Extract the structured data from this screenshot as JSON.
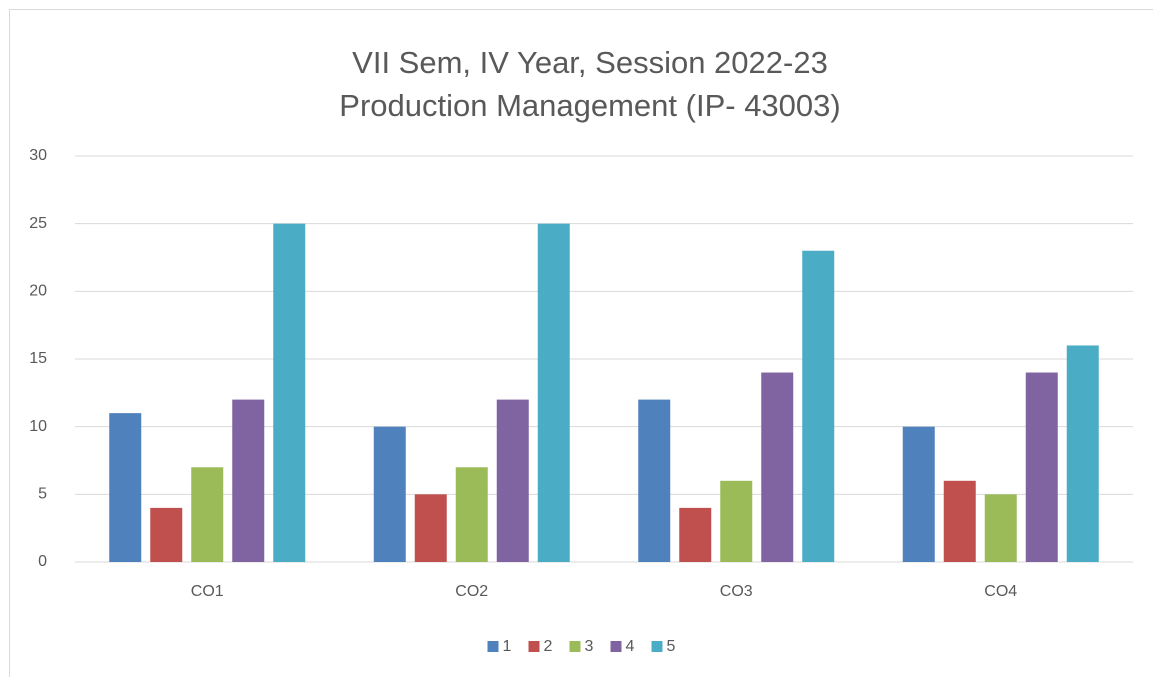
{
  "chart_data": {
    "type": "bar",
    "title": [
      "VII Sem, IV Year, Session 2022-23",
      "Production Management (IP- 43003)"
    ],
    "categories": [
      "CO1",
      "CO2",
      "CO3",
      "CO4"
    ],
    "series": [
      {
        "name": "1",
        "color": "#4f81bd",
        "values": [
          11,
          10,
          12,
          10
        ]
      },
      {
        "name": "2",
        "color": "#c0504d",
        "values": [
          4,
          5,
          4,
          6
        ]
      },
      {
        "name": "3",
        "color": "#9bbb59",
        "values": [
          7,
          7,
          6,
          5
        ]
      },
      {
        "name": "4",
        "color": "#8064a2",
        "values": [
          12,
          12,
          14,
          14
        ]
      },
      {
        "name": "5",
        "color": "#4bacc6",
        "values": [
          25,
          25,
          23,
          16
        ]
      }
    ],
    "ylim": [
      0,
      30
    ],
    "yticks": [
      0,
      5,
      10,
      15,
      20,
      25,
      30
    ],
    "grid": true,
    "legend": "bottom"
  }
}
